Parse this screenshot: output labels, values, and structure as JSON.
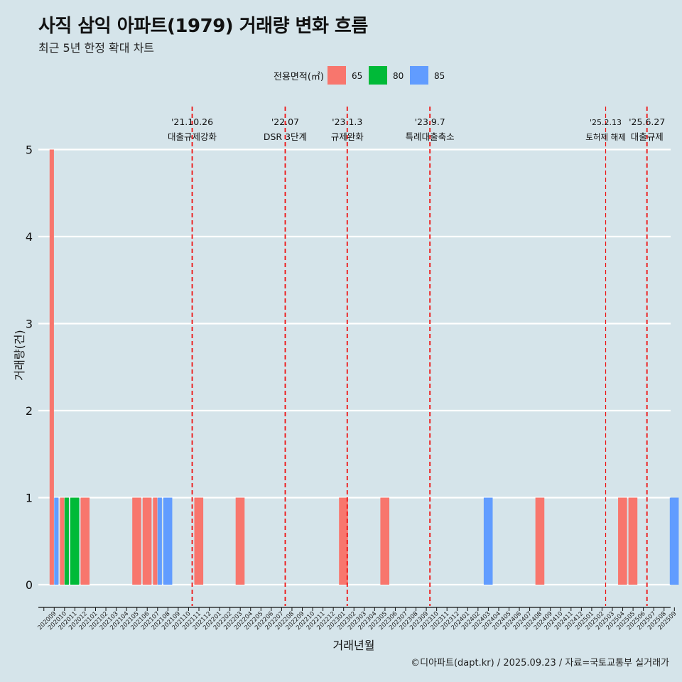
{
  "title": "사직 삼익 아파트(1979) 거래량 변화 흐름",
  "subtitle": "최근 5년 한정 확대 차트",
  "caption": "©디아파트(dapt.kr) / 2025.09.23 / 자료=국토교통부 실거래가",
  "colors": {
    "background": "#d5e4ea",
    "grid": "#ffffff",
    "event_line": "#ee1111",
    "s65": "#f8766d",
    "s80": "#00ba38",
    "s85": "#619cff"
  },
  "chart_data": {
    "type": "bar",
    "xlabel": "거래년월",
    "ylabel": "거래량(건)",
    "ylim": [
      0,
      5
    ],
    "yticks": [
      "0",
      "1",
      "2",
      "3",
      "4",
      "5"
    ],
    "legend": {
      "title": "전용면적(㎡)",
      "position": "top",
      "entries": [
        "65",
        "80",
        "85"
      ]
    },
    "categories": [
      "202009",
      "202010",
      "202011",
      "202012",
      "202101",
      "202102",
      "202103",
      "202104",
      "202105",
      "202106",
      "202107",
      "202108",
      "202109",
      "202110",
      "202111",
      "202112",
      "202201",
      "202202",
      "202203",
      "202204",
      "202205",
      "202206",
      "202207",
      "202208",
      "202209",
      "202210",
      "202211",
      "202212",
      "202301",
      "202302",
      "202303",
      "202304",
      "202305",
      "202306",
      "202307",
      "202308",
      "202309",
      "202310",
      "202311",
      "202312",
      "202401",
      "202402",
      "202403",
      "202404",
      "202405",
      "202406",
      "202407",
      "202408",
      "202409",
      "202410",
      "202411",
      "202412",
      "202501",
      "202502",
      "202503",
      "202504",
      "202505",
      "202506",
      "202507",
      "202508",
      "202509"
    ],
    "series": [
      {
        "name": "65",
        "values": [
          5,
          1,
          0,
          1,
          0,
          0,
          0,
          0,
          1,
          1,
          1,
          0,
          0,
          0,
          1,
          0,
          0,
          0,
          1,
          0,
          0,
          0,
          0,
          0,
          0,
          0,
          0,
          0,
          1,
          0,
          0,
          0,
          1,
          0,
          0,
          0,
          0,
          0,
          0,
          0,
          0,
          0,
          0,
          0,
          0,
          0,
          0,
          1,
          0,
          0,
          0,
          0,
          0,
          0,
          0,
          1,
          1,
          0,
          0,
          0,
          0
        ]
      },
      {
        "name": "80",
        "values": [
          0,
          1,
          1,
          0,
          0,
          0,
          0,
          0,
          0,
          0,
          0,
          0,
          0,
          0,
          0,
          0,
          0,
          0,
          0,
          0,
          0,
          0,
          0,
          0,
          0,
          0,
          0,
          0,
          0,
          0,
          0,
          0,
          0,
          0,
          0,
          0,
          0,
          0,
          0,
          0,
          0,
          0,
          0,
          0,
          0,
          0,
          0,
          0,
          0,
          0,
          0,
          0,
          0,
          0,
          0,
          0,
          0,
          0,
          0,
          0,
          0
        ]
      },
      {
        "name": "85",
        "values": [
          1,
          0,
          0,
          0,
          0,
          0,
          0,
          0,
          0,
          0,
          1,
          1,
          0,
          0,
          0,
          0,
          0,
          0,
          0,
          0,
          0,
          0,
          0,
          0,
          0,
          0,
          0,
          0,
          0,
          0,
          0,
          0,
          0,
          0,
          0,
          0,
          0,
          0,
          0,
          0,
          0,
          0,
          1,
          0,
          0,
          0,
          0,
          0,
          0,
          0,
          0,
          0,
          0,
          0,
          0,
          0,
          0,
          0,
          0,
          0,
          1
        ]
      }
    ],
    "events": [
      {
        "date": "'21.10.26",
        "label": "대출규제강화",
        "x": 13.85
      },
      {
        "date": "'22.07",
        "label": "DSR 3단계",
        "x": 22.85
      },
      {
        "date": "'23.1.3",
        "label": "규제완화",
        "x": 28.85
      },
      {
        "date": "'23.9.7",
        "label": "특례대출축소",
        "x": 36.85
      },
      {
        "date": "'25.2.13",
        "label": "토허제 해제",
        "x": 53.85
      },
      {
        "date": "'25.6.27",
        "label": "대출규제",
        "x": 57.85
      }
    ]
  }
}
